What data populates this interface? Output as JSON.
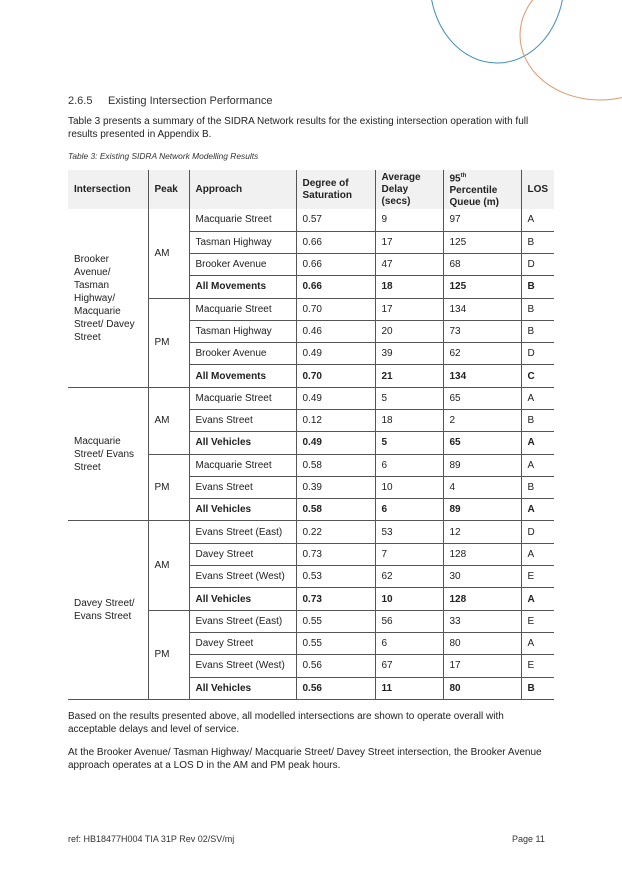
{
  "section": {
    "number": "2.6.5",
    "title": "Existing Intersection Performance"
  },
  "intro": "Table 3 presents a summary of the SIDRA Network results for the existing intersection operation with full results presented in Appendix B.",
  "caption": "Table 3: Existing SIDRA Network Modelling Results",
  "table": {
    "headers": {
      "intersection": "Intersection",
      "peak": "Peak",
      "approach": "Approach",
      "dos": "Degree of Saturation",
      "delay": "Average Delay (secs)",
      "queue_pre": "95",
      "queue_sup": "th",
      "queue_post": " Percentile Queue (m)",
      "los": "LOS"
    },
    "groups": [
      {
        "intersection": "Brooker Avenue/ Tasman Highway/ Macquarie Street/ Davey Street",
        "peaks": [
          {
            "peak": "AM",
            "rows": [
              [
                "Macquarie Street",
                "0.57",
                "9",
                "97",
                "A",
                false
              ],
              [
                "Tasman Highway",
                "0.66",
                "17",
                "125",
                "B",
                false
              ],
              [
                "Brooker Avenue",
                "0.66",
                "47",
                "68",
                "D",
                false
              ],
              [
                "All Movements",
                "0.66",
                "18",
                "125",
                "B",
                true
              ]
            ]
          },
          {
            "peak": "PM",
            "rows": [
              [
                "Macquarie Street",
                "0.70",
                "17",
                "134",
                "B",
                false
              ],
              [
                "Tasman Highway",
                "0.46",
                "20",
                "73",
                "B",
                false
              ],
              [
                "Brooker Avenue",
                "0.49",
                "39",
                "62",
                "D",
                false
              ],
              [
                "All Movements",
                "0.70",
                "21",
                "134",
                "C",
                true
              ]
            ]
          }
        ]
      },
      {
        "intersection": "Macquarie Street/ Evans Street",
        "peaks": [
          {
            "peak": "AM",
            "rows": [
              [
                "Macquarie Street",
                "0.49",
                "5",
                "65",
                "A",
                false
              ],
              [
                "Evans Street",
                "0.12",
                "18",
                "2",
                "B",
                false
              ],
              [
                "All Vehicles",
                "0.49",
                "5",
                "65",
                "A",
                true
              ]
            ]
          },
          {
            "peak": "PM",
            "rows": [
              [
                "Macquarie Street",
                "0.58",
                "6",
                "89",
                "A",
                false
              ],
              [
                "Evans Street",
                "0.39",
                "10",
                "4",
                "B",
                false
              ],
              [
                "All Vehicles",
                "0.58",
                "6",
                "89",
                "A",
                true
              ]
            ]
          }
        ]
      },
      {
        "intersection": "Davey Street/ Evans Street",
        "peaks": [
          {
            "peak": "AM",
            "rows": [
              [
                "Evans Street (East)",
                "0.22",
                "53",
                "12",
                "D",
                false
              ],
              [
                "Davey Street",
                "0.73",
                "7",
                "128",
                "A",
                false
              ],
              [
                "Evans Street (West)",
                "0.53",
                "62",
                "30",
                "E",
                false
              ],
              [
                "All Vehicles",
                "0.73",
                "10",
                "128",
                "A",
                true
              ]
            ]
          },
          {
            "peak": "PM",
            "rows": [
              [
                "Evans Street (East)",
                "0.55",
                "56",
                "33",
                "E",
                false
              ],
              [
                "Davey Street",
                "0.55",
                "6",
                "80",
                "A",
                false
              ],
              [
                "Evans Street (West)",
                "0.56",
                "67",
                "17",
                "E",
                false
              ],
              [
                "All Vehicles",
                "0.56",
                "11",
                "80",
                "B",
                true
              ]
            ]
          }
        ]
      }
    ]
  },
  "para1": "Based on the results presented above, all modelled intersections are shown to operate overall with acceptable delays and level of service.",
  "para2": "At the Brooker Avenue/ Tasman Highway/ Macquarie Street/ Davey Street intersection, the Brooker Avenue approach operates at a LOS D in the AM and PM peak hours.",
  "footer": {
    "ref": "ref: HB18477H004 TIA 31P Rev 02/SV/mj",
    "page": "Page 11"
  },
  "colors": {
    "arc_blue": "#3f8fb8",
    "arc_orange": "#e0956a",
    "header_bg": "#f1f1f1"
  }
}
